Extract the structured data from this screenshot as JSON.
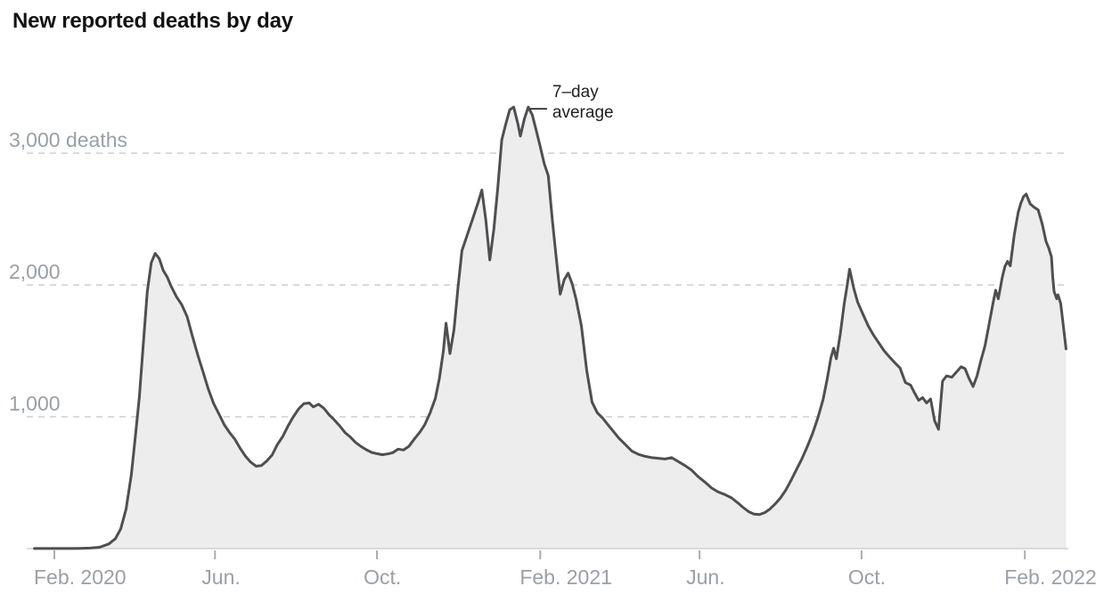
{
  "title": "New reported deaths by day",
  "chart_data": {
    "type": "area",
    "title": "New reported deaths by day",
    "x_range": [
      "2020-01-17",
      "2022-03-04"
    ],
    "ylim": [
      0,
      3500
    ],
    "grid": "dashed horizontal",
    "legend": "none",
    "x_ticks": [
      {
        "label": "Feb. 2020",
        "date": "2020-02-01"
      },
      {
        "label": "Jun.",
        "date": "2020-06-01"
      },
      {
        "label": "Oct.",
        "date": "2020-10-01"
      },
      {
        "label": "Feb. 2021",
        "date": "2021-02-01"
      },
      {
        "label": "Jun.",
        "date": "2021-06-01"
      },
      {
        "label": "Oct.",
        "date": "2021-10-01"
      },
      {
        "label": "Feb. 2022",
        "date": "2022-02-01"
      }
    ],
    "y_ticks": [
      {
        "value": 1000,
        "label": "1,000"
      },
      {
        "value": 2000,
        "label": "2,000"
      },
      {
        "value": 3000,
        "label": "3,000 deaths"
      }
    ],
    "annotation": {
      "text_line1": "7–day",
      "text_line2": "average",
      "attach_date": "2021-01-23",
      "attach_value": 3350
    },
    "colors": {
      "line": "#4d4f51",
      "fill": "#ededee",
      "grid": "#cdcdcd",
      "baseline": "#d0d0d0",
      "tick": "#a8adb2",
      "axis_text": "#99a0a7",
      "title_text": "#121212",
      "annotation_text": "#1f1f1f"
    },
    "series": [
      {
        "name": "7-day average of new reported deaths",
        "points": [
          [
            "2020-01-17",
            1
          ],
          [
            "2020-01-24",
            1
          ],
          [
            "2020-01-31",
            1
          ],
          [
            "2020-02-07",
            1
          ],
          [
            "2020-02-14",
            1
          ],
          [
            "2020-02-21",
            2
          ],
          [
            "2020-02-28",
            4
          ],
          [
            "2020-03-06",
            10
          ],
          [
            "2020-03-13",
            35
          ],
          [
            "2020-03-18",
            75
          ],
          [
            "2020-03-22",
            150
          ],
          [
            "2020-03-26",
            300
          ],
          [
            "2020-03-30",
            560
          ],
          [
            "2020-04-02",
            850
          ],
          [
            "2020-04-05",
            1150
          ],
          [
            "2020-04-08",
            1550
          ],
          [
            "2020-04-11",
            1950
          ],
          [
            "2020-04-14",
            2170
          ],
          [
            "2020-04-17",
            2240
          ],
          [
            "2020-04-20",
            2200
          ],
          [
            "2020-04-23",
            2110
          ],
          [
            "2020-04-26",
            2060
          ],
          [
            "2020-04-29",
            1990
          ],
          [
            "2020-05-03",
            1910
          ],
          [
            "2020-05-07",
            1850
          ],
          [
            "2020-05-11",
            1760
          ],
          [
            "2020-05-15",
            1610
          ],
          [
            "2020-05-19",
            1470
          ],
          [
            "2020-05-23",
            1340
          ],
          [
            "2020-05-27",
            1210
          ],
          [
            "2020-05-31",
            1100
          ],
          [
            "2020-06-04",
            1020
          ],
          [
            "2020-06-08",
            940
          ],
          [
            "2020-06-12",
            880
          ],
          [
            "2020-06-16",
            830
          ],
          [
            "2020-06-20",
            760
          ],
          [
            "2020-06-24",
            700
          ],
          [
            "2020-06-28",
            655
          ],
          [
            "2020-07-02",
            625
          ],
          [
            "2020-07-06",
            630
          ],
          [
            "2020-07-10",
            665
          ],
          [
            "2020-07-14",
            710
          ],
          [
            "2020-07-18",
            790
          ],
          [
            "2020-07-22",
            850
          ],
          [
            "2020-07-26",
            930
          ],
          [
            "2020-07-30",
            1000
          ],
          [
            "2020-08-03",
            1060
          ],
          [
            "2020-08-07",
            1100
          ],
          [
            "2020-08-11",
            1105
          ],
          [
            "2020-08-14",
            1075
          ],
          [
            "2020-08-18",
            1095
          ],
          [
            "2020-08-22",
            1065
          ],
          [
            "2020-08-26",
            1015
          ],
          [
            "2020-08-30",
            975
          ],
          [
            "2020-09-03",
            930
          ],
          [
            "2020-09-07",
            880
          ],
          [
            "2020-09-11",
            845
          ],
          [
            "2020-09-15",
            805
          ],
          [
            "2020-09-19",
            775
          ],
          [
            "2020-09-23",
            750
          ],
          [
            "2020-09-27",
            730
          ],
          [
            "2020-10-01",
            720
          ],
          [
            "2020-10-05",
            712
          ],
          [
            "2020-10-09",
            718
          ],
          [
            "2020-10-13",
            728
          ],
          [
            "2020-10-17",
            755
          ],
          [
            "2020-10-21",
            748
          ],
          [
            "2020-10-25",
            775
          ],
          [
            "2020-10-29",
            830
          ],
          [
            "2020-11-02",
            880
          ],
          [
            "2020-11-06",
            940
          ],
          [
            "2020-11-10",
            1030
          ],
          [
            "2020-11-14",
            1140
          ],
          [
            "2020-11-17",
            1290
          ],
          [
            "2020-11-20",
            1500
          ],
          [
            "2020-11-22",
            1710
          ],
          [
            "2020-11-25",
            1480
          ],
          [
            "2020-11-28",
            1660
          ],
          [
            "2020-12-01",
            1980
          ],
          [
            "2020-12-04",
            2260
          ],
          [
            "2020-12-08",
            2380
          ],
          [
            "2020-12-12",
            2500
          ],
          [
            "2020-12-16",
            2620
          ],
          [
            "2020-12-19",
            2720
          ],
          [
            "2020-12-22",
            2490
          ],
          [
            "2020-12-25",
            2190
          ],
          [
            "2020-12-28",
            2420
          ],
          [
            "2020-12-31",
            2740
          ],
          [
            "2021-01-03",
            3100
          ],
          [
            "2021-01-06",
            3220
          ],
          [
            "2021-01-09",
            3330
          ],
          [
            "2021-01-12",
            3350
          ],
          [
            "2021-01-15",
            3230
          ],
          [
            "2021-01-17",
            3130
          ],
          [
            "2021-01-20",
            3260
          ],
          [
            "2021-01-23",
            3350
          ],
          [
            "2021-01-26",
            3290
          ],
          [
            "2021-01-29",
            3170
          ],
          [
            "2021-02-01",
            3050
          ],
          [
            "2021-02-04",
            2920
          ],
          [
            "2021-02-07",
            2830
          ],
          [
            "2021-02-10",
            2500
          ],
          [
            "2021-02-13",
            2210
          ],
          [
            "2021-02-16",
            1930
          ],
          [
            "2021-02-19",
            2040
          ],
          [
            "2021-02-22",
            2090
          ],
          [
            "2021-02-25",
            2010
          ],
          [
            "2021-02-28",
            1890
          ],
          [
            "2021-03-04",
            1690
          ],
          [
            "2021-03-08",
            1350
          ],
          [
            "2021-03-12",
            1110
          ],
          [
            "2021-03-16",
            1030
          ],
          [
            "2021-03-20",
            990
          ],
          [
            "2021-03-24",
            940
          ],
          [
            "2021-03-28",
            890
          ],
          [
            "2021-04-01",
            840
          ],
          [
            "2021-04-06",
            790
          ],
          [
            "2021-04-11",
            740
          ],
          [
            "2021-04-16",
            715
          ],
          [
            "2021-04-21",
            700
          ],
          [
            "2021-04-26",
            690
          ],
          [
            "2021-05-01",
            685
          ],
          [
            "2021-05-06",
            680
          ],
          [
            "2021-05-11",
            690
          ],
          [
            "2021-05-16",
            660
          ],
          [
            "2021-05-21",
            630
          ],
          [
            "2021-05-26",
            595
          ],
          [
            "2021-05-31",
            545
          ],
          [
            "2021-06-05",
            505
          ],
          [
            "2021-06-10",
            460
          ],
          [
            "2021-06-15",
            430
          ],
          [
            "2021-06-20",
            410
          ],
          [
            "2021-06-25",
            385
          ],
          [
            "2021-06-30",
            345
          ],
          [
            "2021-07-04",
            310
          ],
          [
            "2021-07-08",
            280
          ],
          [
            "2021-07-12",
            262
          ],
          [
            "2021-07-16",
            258
          ],
          [
            "2021-07-20",
            272
          ],
          [
            "2021-07-24",
            300
          ],
          [
            "2021-07-28",
            340
          ],
          [
            "2021-08-01",
            385
          ],
          [
            "2021-08-05",
            445
          ],
          [
            "2021-08-09",
            520
          ],
          [
            "2021-08-13",
            600
          ],
          [
            "2021-08-17",
            680
          ],
          [
            "2021-08-21",
            770
          ],
          [
            "2021-08-25",
            870
          ],
          [
            "2021-08-29",
            990
          ],
          [
            "2021-09-02",
            1130
          ],
          [
            "2021-09-05",
            1280
          ],
          [
            "2021-09-08",
            1450
          ],
          [
            "2021-09-10",
            1520
          ],
          [
            "2021-09-12",
            1440
          ],
          [
            "2021-09-15",
            1630
          ],
          [
            "2021-09-18",
            1860
          ],
          [
            "2021-09-20",
            1985
          ],
          [
            "2021-09-22",
            2120
          ],
          [
            "2021-09-25",
            1980
          ],
          [
            "2021-09-28",
            1870
          ],
          [
            "2021-10-02",
            1780
          ],
          [
            "2021-10-06",
            1690
          ],
          [
            "2021-10-10",
            1620
          ],
          [
            "2021-10-14",
            1560
          ],
          [
            "2021-10-18",
            1500
          ],
          [
            "2021-10-22",
            1455
          ],
          [
            "2021-10-26",
            1410
          ],
          [
            "2021-10-30",
            1370
          ],
          [
            "2021-11-03",
            1260
          ],
          [
            "2021-11-07",
            1240
          ],
          [
            "2021-11-10",
            1180
          ],
          [
            "2021-11-13",
            1125
          ],
          [
            "2021-11-16",
            1145
          ],
          [
            "2021-11-19",
            1105
          ],
          [
            "2021-11-22",
            1135
          ],
          [
            "2021-11-25",
            970
          ],
          [
            "2021-11-28",
            905
          ],
          [
            "2021-12-01",
            1270
          ],
          [
            "2021-12-04",
            1310
          ],
          [
            "2021-12-08",
            1300
          ],
          [
            "2021-12-12",
            1345
          ],
          [
            "2021-12-15",
            1380
          ],
          [
            "2021-12-18",
            1365
          ],
          [
            "2021-12-21",
            1290
          ],
          [
            "2021-12-24",
            1230
          ],
          [
            "2021-12-27",
            1310
          ],
          [
            "2021-12-30",
            1430
          ],
          [
            "2022-01-02",
            1540
          ],
          [
            "2022-01-05",
            1700
          ],
          [
            "2022-01-08",
            1860
          ],
          [
            "2022-01-10",
            1960
          ],
          [
            "2022-01-12",
            1895
          ],
          [
            "2022-01-15",
            2060
          ],
          [
            "2022-01-17",
            2140
          ],
          [
            "2022-01-19",
            2180
          ],
          [
            "2022-01-21",
            2145
          ],
          [
            "2022-01-24",
            2380
          ],
          [
            "2022-01-27",
            2550
          ],
          [
            "2022-01-29",
            2620
          ],
          [
            "2022-01-31",
            2670
          ],
          [
            "2022-02-02",
            2690
          ],
          [
            "2022-02-05",
            2615
          ],
          [
            "2022-02-08",
            2590
          ],
          [
            "2022-02-11",
            2570
          ],
          [
            "2022-02-14",
            2465
          ],
          [
            "2022-02-17",
            2330
          ],
          [
            "2022-02-19",
            2280
          ],
          [
            "2022-02-21",
            2215
          ],
          [
            "2022-02-22",
            2060
          ],
          [
            "2022-02-23",
            1950
          ],
          [
            "2022-02-25",
            1895
          ],
          [
            "2022-02-26",
            1925
          ],
          [
            "2022-02-28",
            1860
          ],
          [
            "2022-03-02",
            1690
          ],
          [
            "2022-03-04",
            1515
          ]
        ]
      }
    ]
  }
}
